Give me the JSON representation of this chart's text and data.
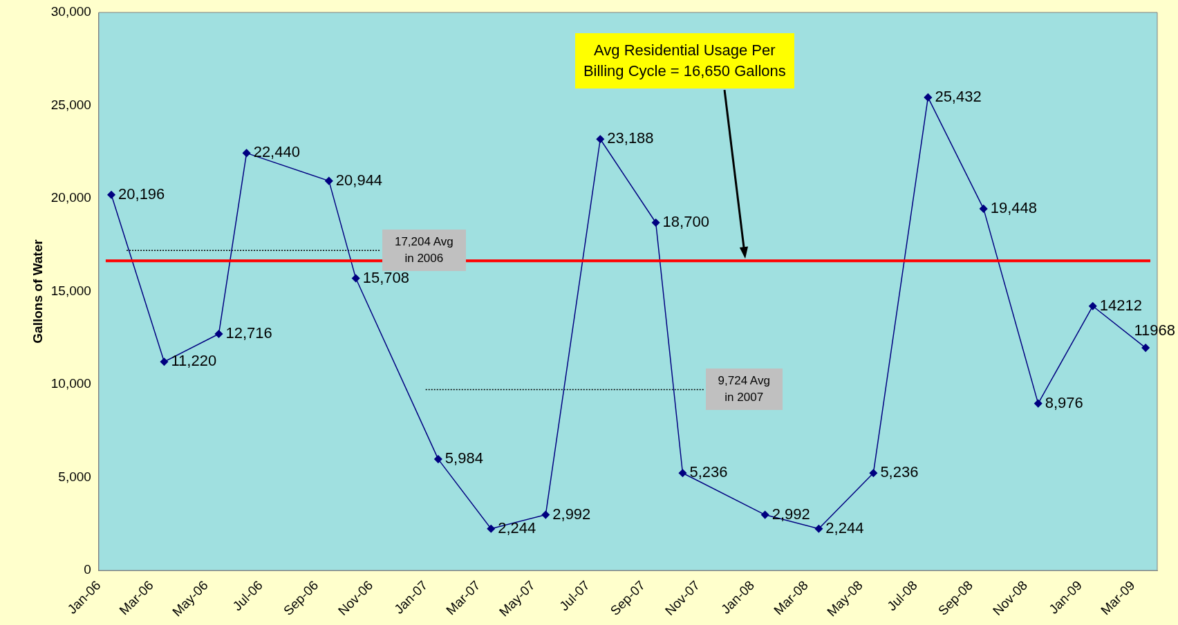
{
  "chart_data": {
    "type": "line",
    "ylabel": "Gallons of Water",
    "x": [
      "2006-01-15",
      "2006-03-15",
      "2006-05-15",
      "2006-06-15",
      "2006-09-15",
      "2006-10-15",
      "2007-01-15",
      "2007-03-15",
      "2007-05-15",
      "2007-07-15",
      "2007-09-15",
      "2007-10-15",
      "2008-01-15",
      "2008-03-15",
      "2008-05-15",
      "2008-07-15",
      "2008-09-15",
      "2008-11-15",
      "2009-01-15",
      "2009-03-15"
    ],
    "series": [
      {
        "color": "#000080",
        "marker": "diamond",
        "values": [
          20196,
          11220,
          12716,
          22440,
          20944,
          15708,
          5984,
          2244,
          2992,
          23188,
          18700,
          5236,
          2992,
          2244,
          5236,
          25432,
          19448,
          8976,
          14212,
          11968
        ],
        "value_labels": [
          "20,196",
          "11,220",
          "12,716",
          "22,440",
          "20,944",
          "15,708",
          "5,984",
          "2,244",
          "2,992",
          "23,188",
          "18,700",
          "5,236",
          "2,992",
          "2,244",
          "5,236",
          "25,432",
          "19,448",
          "8,976",
          "14212",
          "11968"
        ]
      },
      {
        "type": "line",
        "color": "#000000",
        "line_style": "dotted",
        "marker": "none",
        "x": [
          "2006-02-01",
          "2006-11-12"
        ],
        "values": [
          17204,
          17204
        ]
      },
      {
        "type": "line",
        "color": "#000000",
        "line_style": "dotted",
        "marker": "none",
        "x": [
          "2007-01-01",
          "2007-11-08"
        ],
        "values": [
          9724,
          9724
        ]
      }
    ],
    "xlim": [
      "2006-01-01",
      "2009-03-28"
    ],
    "xticks": [
      {
        "value": "2006-01-01",
        "label": "Jan-06"
      },
      {
        "value": "2006-03-01",
        "label": "Mar-06"
      },
      {
        "value": "2006-05-01",
        "label": "May-06"
      },
      {
        "value": "2006-07-01",
        "label": "Jul-06"
      },
      {
        "value": "2006-09-01",
        "label": "Sep-06"
      },
      {
        "value": "2006-11-01",
        "label": "Nov-06"
      },
      {
        "value": "2007-01-01",
        "label": "Jan-07"
      },
      {
        "value": "2007-03-01",
        "label": "Mar-07"
      },
      {
        "value": "2007-05-01",
        "label": "May-07"
      },
      {
        "value": "2007-07-01",
        "label": "Jul-07"
      },
      {
        "value": "2007-09-01",
        "label": "Sep-07"
      },
      {
        "value": "2007-11-01",
        "label": "Nov-07"
      },
      {
        "value": "2008-01-01",
        "label": "Jan-08"
      },
      {
        "value": "2008-03-01",
        "label": "Mar-08"
      },
      {
        "value": "2008-05-01",
        "label": "May-08"
      },
      {
        "value": "2008-07-01",
        "label": "Jul-08"
      },
      {
        "value": "2008-09-01",
        "label": "Sep-08"
      },
      {
        "value": "2008-11-01",
        "label": "Nov-08"
      },
      {
        "value": "2009-01-01",
        "label": "Jan-09"
      },
      {
        "value": "2009-03-01",
        "label": "Mar-09"
      }
    ],
    "ylim": [
      0,
      30000
    ],
    "yticks": [
      {
        "value": 0,
        "label": "0"
      },
      {
        "value": 5000,
        "label": "5,000"
      },
      {
        "value": 10000,
        "label": "10,000"
      },
      {
        "value": 15000,
        "label": "15,000"
      },
      {
        "value": 20000,
        "label": "20,000"
      },
      {
        "value": 25000,
        "label": "25,000"
      },
      {
        "value": 30000,
        "label": "30,000"
      }
    ],
    "ref_lines": [
      {
        "axis": "y",
        "value": 16650,
        "color": "#ff0000"
      }
    ],
    "annotations": [
      "Avg Residential Usage Per\nBilling Cycle = 16,650 Gallons",
      "17,204 Avg\nin 2006",
      "9,724 Avg\nin 2007"
    ],
    "grid": false,
    "legend": false
  }
}
